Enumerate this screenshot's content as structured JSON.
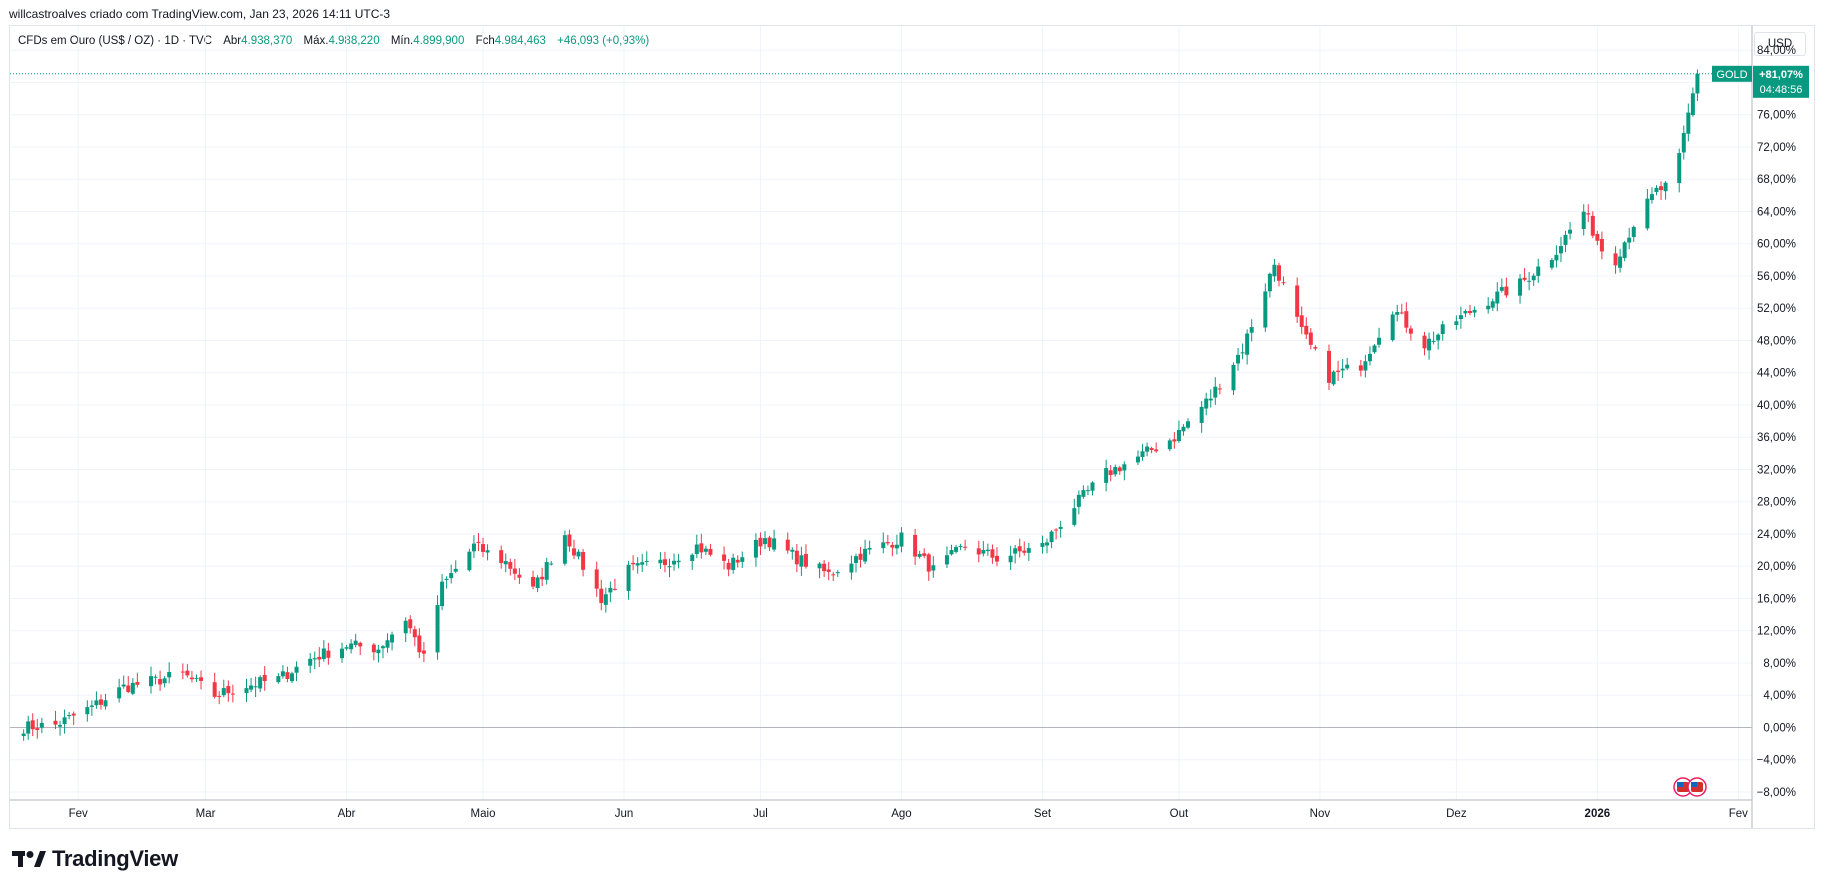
{
  "caption": "willcastroalves criado com TradingView.com, Jan 23, 2026 14:11 UTC-3",
  "legend": {
    "symbol": "CFDs em Ouro (US$ / OZ) · 1D · TVC",
    "open_label": "Abr",
    "open_value": "4.938,370",
    "high_label": "Máx.",
    "high_value": "4.988,220",
    "low_label": "Mín.",
    "low_value": "4.899,900",
    "close_label": "Fch",
    "close_value": "4.984,463",
    "change": "+46,093 (+0,93%)"
  },
  "currency": "USD",
  "last_tag": {
    "symbol": "GOLD",
    "value": "+81,07%",
    "countdown": "04:48:56"
  },
  "brand": {
    "name": "TradingView"
  },
  "colors": {
    "up": "#089981",
    "down": "#f23645",
    "grid": "#f0f3fa",
    "axis_text": "#131722",
    "tag_bg": "#089981"
  },
  "chart_data": {
    "type": "candlestick",
    "y_unit": "percent change from first close",
    "ylim": [
      -9,
      87
    ],
    "y_ticks": [
      -8,
      -4,
      0,
      4,
      8,
      12,
      16,
      20,
      24,
      28,
      32,
      36,
      40,
      44,
      48,
      52,
      56,
      60,
      64,
      68,
      72,
      76,
      80,
      84
    ],
    "y_tick_labels": [
      "−8,00%",
      "−4,00%",
      "0,00%",
      "4,00%",
      "8,00%",
      "12,00%",
      "16,00%",
      "20,00%",
      "24,00%",
      "28,00%",
      "32,00%",
      "36,00%",
      "40,00%",
      "44,00%",
      "48,00%",
      "52,00%",
      "56,00%",
      "60,00%",
      "64,00%",
      "68,00%",
      "72,00%",
      "76,00%",
      "80,00%",
      "84,00%"
    ],
    "x_ticks": [
      {
        "label": "Fev",
        "date": "2025-02-01"
      },
      {
        "label": "Mar",
        "date": "2025-03-01"
      },
      {
        "label": "Abr",
        "date": "2025-04-01"
      },
      {
        "label": "Maio",
        "date": "2025-05-01"
      },
      {
        "label": "Jun",
        "date": "2025-06-01"
      },
      {
        "label": "Jul",
        "date": "2025-07-01"
      },
      {
        "label": "Ago",
        "date": "2025-08-01"
      },
      {
        "label": "Set",
        "date": "2025-09-01"
      },
      {
        "label": "Out",
        "date": "2025-10-01"
      },
      {
        "label": "Nov",
        "date": "2025-11-01"
      },
      {
        "label": "Dez",
        "date": "2025-12-01"
      },
      {
        "label": "2026",
        "date": "2026-01-01",
        "bold": true
      },
      {
        "label": "Fev",
        "date": "2026-02-01"
      }
    ],
    "xlim": [
      "2025-01-17",
      "2026-02-04"
    ],
    "last_value": 81.07,
    "anchors": [
      {
        "date": "2025-01-19",
        "value": 0.0
      },
      {
        "date": "2025-01-27",
        "value": 0.3
      },
      {
        "date": "2025-02-04",
        "value": 2.5
      },
      {
        "date": "2025-02-11",
        "value": 5.0
      },
      {
        "date": "2025-02-18",
        "value": 5.8
      },
      {
        "date": "2025-02-24",
        "value": 6.6
      },
      {
        "date": "2025-03-03",
        "value": 4.0
      },
      {
        "date": "2025-03-10",
        "value": 5.2
      },
      {
        "date": "2025-03-17",
        "value": 6.0
      },
      {
        "date": "2025-03-24",
        "value": 8.5
      },
      {
        "date": "2025-04-01",
        "value": 10.2
      },
      {
        "date": "2025-04-08",
        "value": 9.8
      },
      {
        "date": "2025-04-14",
        "value": 13.5
      },
      {
        "date": "2025-04-18",
        "value": 8.5
      },
      {
        "date": "2025-04-22",
        "value": 17.5
      },
      {
        "date": "2025-04-29",
        "value": 22.5
      },
      {
        "date": "2025-05-06",
        "value": 20.5
      },
      {
        "date": "2025-05-12",
        "value": 17.0
      },
      {
        "date": "2025-05-19",
        "value": 24.0
      },
      {
        "date": "2025-05-27",
        "value": 16.0
      },
      {
        "date": "2025-06-02",
        "value": 19.5
      },
      {
        "date": "2025-06-10",
        "value": 20.5
      },
      {
        "date": "2025-06-17",
        "value": 22.5
      },
      {
        "date": "2025-06-24",
        "value": 20.0
      },
      {
        "date": "2025-07-02",
        "value": 23.5
      },
      {
        "date": "2025-07-09",
        "value": 21.0
      },
      {
        "date": "2025-07-16",
        "value": 19.0
      },
      {
        "date": "2025-07-23",
        "value": 21.5
      },
      {
        "date": "2025-08-01",
        "value": 23.5
      },
      {
        "date": "2025-08-08",
        "value": 19.5
      },
      {
        "date": "2025-08-15",
        "value": 22.5
      },
      {
        "date": "2025-08-22",
        "value": 21.0
      },
      {
        "date": "2025-09-01",
        "value": 22.5
      },
      {
        "date": "2025-09-08",
        "value": 27.5
      },
      {
        "date": "2025-09-15",
        "value": 31.5
      },
      {
        "date": "2025-09-22",
        "value": 33.5
      },
      {
        "date": "2025-09-30",
        "value": 36.0
      },
      {
        "date": "2025-10-08",
        "value": 41.0
      },
      {
        "date": "2025-10-15",
        "value": 47.0
      },
      {
        "date": "2025-10-22",
        "value": 57.5
      },
      {
        "date": "2025-10-28",
        "value": 49.0
      },
      {
        "date": "2025-11-03",
        "value": 43.5
      },
      {
        "date": "2025-11-10",
        "value": 45.0
      },
      {
        "date": "2025-11-17",
        "value": 52.0
      },
      {
        "date": "2025-11-24",
        "value": 47.5
      },
      {
        "date": "2025-12-01",
        "value": 50.5
      },
      {
        "date": "2025-12-08",
        "value": 53.0
      },
      {
        "date": "2025-12-15",
        "value": 55.0
      },
      {
        "date": "2025-12-22",
        "value": 58.5
      },
      {
        "date": "2025-12-29",
        "value": 64.0
      },
      {
        "date": "2026-01-04",
        "value": 57.0
      },
      {
        "date": "2026-01-09",
        "value": 62.5
      },
      {
        "date": "2026-01-14",
        "value": 66.5
      },
      {
        "date": "2026-01-16",
        "value": 67.0
      },
      {
        "date": "2026-01-19",
        "value": 70.5
      },
      {
        "date": "2026-01-21",
        "value": 76.0
      },
      {
        "date": "2026-01-23",
        "value": 81.07
      }
    ]
  }
}
